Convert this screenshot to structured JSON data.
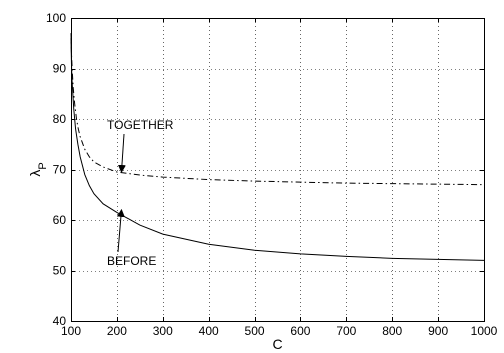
{
  "chart_data": {
    "type": "line",
    "title": "",
    "xlabel": "C",
    "ylabel_main": "λ",
    "ylabel_sub": "P",
    "xlim": [
      100,
      1000
    ],
    "ylim": [
      40,
      100
    ],
    "xticks": [
      100,
      200,
      300,
      400,
      500,
      600,
      700,
      800,
      900,
      1000
    ],
    "yticks": [
      40,
      50,
      60,
      70,
      80,
      90,
      100
    ],
    "grid": true,
    "series": [
      {
        "name": "TOGETHER",
        "style": "dashdot",
        "color": "#000000",
        "x": [
          100,
          101,
          103,
          105,
          108,
          112,
          116,
          120,
          130,
          140,
          150,
          170,
          200,
          250,
          300,
          400,
          500,
          600,
          700,
          800,
          900,
          1000
        ],
        "y": [
          97,
          93,
          89,
          86,
          83,
          80,
          78,
          76.5,
          74,
          72.5,
          71.5,
          70.5,
          69.5,
          68.9,
          68.5,
          68.0,
          67.7,
          67.5,
          67.3,
          67.2,
          67.1,
          67.0
        ]
      },
      {
        "name": "BEFORE",
        "style": "solid",
        "color": "#000000",
        "x": [
          100,
          101,
          102,
          104,
          106,
          110,
          115,
          120,
          130,
          140,
          150,
          170,
          200,
          250,
          300,
          400,
          500,
          600,
          700,
          800,
          900,
          1000
        ],
        "y": [
          96,
          91,
          88,
          85,
          82,
          78,
          75,
          72.5,
          69,
          66.8,
          65.2,
          63.2,
          61.5,
          59.0,
          57.2,
          55.2,
          54.0,
          53.3,
          52.8,
          52.4,
          52.2,
          52.0
        ]
      }
    ],
    "annotations": [
      {
        "text": "TOGETHER",
        "arrow_to": [
          210,
          69.5
        ]
      },
      {
        "text": "BEFORE",
        "arrow_to": [
          210,
          62
        ]
      }
    ]
  }
}
